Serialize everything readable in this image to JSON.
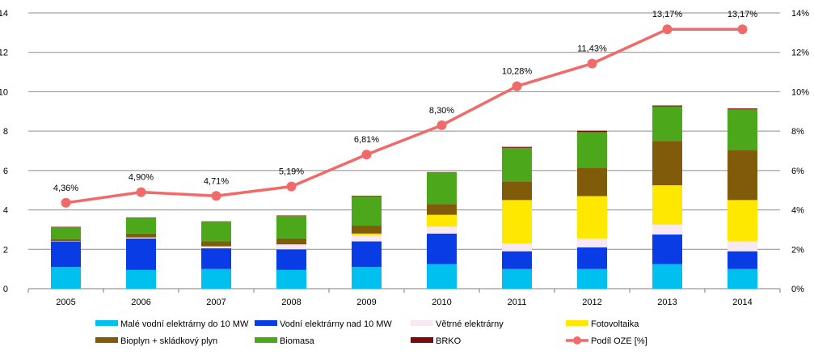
{
  "chart_data": {
    "type": "bar",
    "stacked": true,
    "categories": [
      "2005",
      "2006",
      "2007",
      "2008",
      "2009",
      "2010",
      "2011",
      "2012",
      "2013",
      "2014"
    ],
    "y_left": {
      "ylim": [
        0,
        14
      ],
      "ticks": [
        "0",
        "2",
        "4",
        "6",
        "8",
        "10",
        "12",
        "14"
      ]
    },
    "y_right": {
      "ylim": [
        0,
        14
      ],
      "ticks": [
        "0%",
        "2%",
        "4%",
        "6%",
        "8%",
        "10%",
        "12%",
        "14%"
      ]
    },
    "grid": true,
    "legend_position": "bottom",
    "series": [
      {
        "name": "Malé vodní elektrárny do 10 MW",
        "color": "#00C0F0",
        "values": [
          1.1,
          0.95,
          1.0,
          0.95,
          1.1,
          1.25,
          1.0,
          1.0,
          1.25,
          1.0
        ]
      },
      {
        "name": "Vodní elektrárny nad 10 MW",
        "color": "#0A3CE6",
        "values": [
          1.3,
          1.6,
          1.05,
          1.05,
          1.3,
          1.55,
          0.9,
          1.1,
          1.5,
          0.9
        ]
      },
      {
        "name": "Větrné elektrárny",
        "color": "#F8E8F4",
        "values": [
          0.02,
          0.05,
          0.1,
          0.25,
          0.3,
          0.35,
          0.4,
          0.45,
          0.5,
          0.5
        ]
      },
      {
        "name": "Fotovoltaika",
        "color": "#FFE800",
        "values": [
          0.0,
          0.0,
          0.0,
          0.0,
          0.1,
          0.6,
          2.2,
          2.15,
          2.0,
          2.1
        ]
      },
      {
        "name": "Bioplyn + skládkový plyn",
        "color": "#7F5B0A",
        "values": [
          0.1,
          0.2,
          0.25,
          0.3,
          0.4,
          0.55,
          0.95,
          1.45,
          2.25,
          2.55
        ]
      },
      {
        "name": "Biomasa",
        "color": "#4CA81A",
        "values": [
          0.6,
          0.8,
          1.0,
          1.15,
          1.5,
          1.6,
          1.7,
          1.8,
          1.75,
          2.05
        ]
      },
      {
        "name": "BRKO",
        "color": "#7B0A0A",
        "values": [
          0.02,
          0.02,
          0.02,
          0.02,
          0.02,
          0.02,
          0.05,
          0.07,
          0.05,
          0.05
        ]
      }
    ],
    "line": {
      "name": "Podíl OZE [%]",
      "color": "#F06A6A",
      "values": [
        4.36,
        4.9,
        4.71,
        5.19,
        6.81,
        8.3,
        10.28,
        11.43,
        13.17,
        13.17
      ],
      "labels": [
        "4,36%",
        "4,90%",
        "4,71%",
        "5,19%",
        "6,81%",
        "8,30%",
        "10,28%",
        "11,43%",
        "13,17%",
        "13,17%"
      ]
    }
  }
}
